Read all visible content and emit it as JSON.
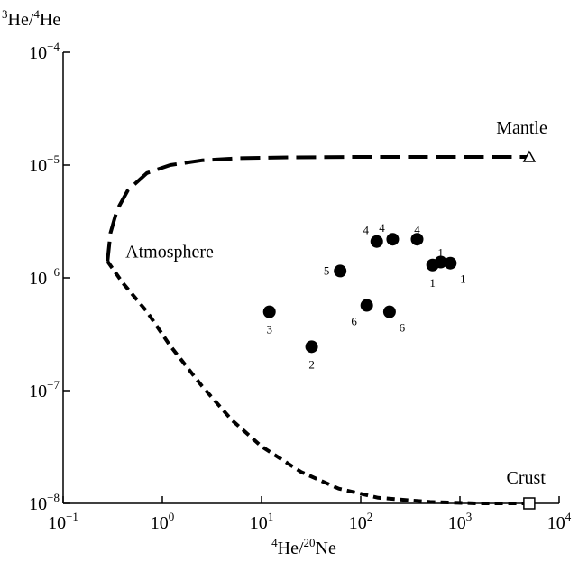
{
  "chart_data": {
    "type": "scatter",
    "xscale": "log",
    "yscale": "log",
    "xlim": [
      0.1,
      10000
    ],
    "ylim": [
      1e-08,
      0.0001
    ],
    "xlabel": {
      "base1": "4",
      "base2": "He/",
      "sup2": "20",
      "tail": "Ne"
    },
    "ylabel": {
      "sup1": "3",
      "base1": "He/",
      "sup2": "4",
      "base2": "He"
    },
    "x_ticks": [
      {
        "value": 0.1,
        "base": "10",
        "exp": "−1"
      },
      {
        "value": 1,
        "base": "10",
        "exp": "0"
      },
      {
        "value": 10,
        "base": "10",
        "exp": "1"
      },
      {
        "value": 100,
        "base": "10",
        "exp": "2"
      },
      {
        "value": 1000,
        "base": "10",
        "exp": "3"
      },
      {
        "value": 10000,
        "base": "10",
        "exp": "4"
      }
    ],
    "y_ticks": [
      {
        "value": 1e-08,
        "base": "10",
        "exp": "−8"
      },
      {
        "value": 1e-07,
        "base": "10",
        "exp": "−7"
      },
      {
        "value": 1e-06,
        "base": "10",
        "exp": "−6"
      },
      {
        "value": 1e-05,
        "base": "10",
        "exp": "−5"
      },
      {
        "value": 0.0001,
        "base": "10",
        "exp": "−4"
      }
    ],
    "grid": false,
    "points": [
      {
        "x": 12,
        "y": 5e-07,
        "label": "3",
        "label_pos": "below"
      },
      {
        "x": 32,
        "y": 2.45e-07,
        "label": "2",
        "label_pos": "below"
      },
      {
        "x": 62,
        "y": 1.15e-06,
        "label": "5",
        "label_pos": "left"
      },
      {
        "x": 115,
        "y": 5.7e-07,
        "label": "6",
        "label_pos": "below-left"
      },
      {
        "x": 195,
        "y": 5e-07,
        "label": "6",
        "label_pos": "below-right"
      },
      {
        "x": 145,
        "y": 2.1e-06,
        "label": "4",
        "label_pos": "above-left"
      },
      {
        "x": 210,
        "y": 2.2e-06,
        "label": "4",
        "label_pos": "above-left"
      },
      {
        "x": 370,
        "y": 2.2e-06,
        "label": "4",
        "label_pos": "above"
      },
      {
        "x": 530,
        "y": 1.3e-06,
        "label": "1",
        "label_pos": "below"
      },
      {
        "x": 640,
        "y": 1.38e-06,
        "label": "1",
        "label_pos": "above"
      },
      {
        "x": 800,
        "y": 1.35e-06,
        "label": "1",
        "label_pos": "below-right"
      }
    ],
    "curves": [
      {
        "style": "long-dash",
        "points": [
          [
            0.28,
            1.4e-06
          ],
          [
            0.3,
            2.5e-06
          ],
          [
            0.35,
            4e-06
          ],
          [
            0.45,
            6e-06
          ],
          [
            0.7,
            8.5e-06
          ],
          [
            1.2,
            1e-05
          ],
          [
            2.5,
            1.1e-05
          ],
          [
            6,
            1.15e-05
          ],
          [
            20,
            1.17e-05
          ],
          [
            100,
            1.18e-05
          ],
          [
            1000,
            1.18e-05
          ],
          [
            5000,
            1.18e-05
          ]
        ]
      },
      {
        "style": "short-dash",
        "points": [
          [
            0.28,
            1.4e-06
          ],
          [
            0.4,
            9e-07
          ],
          [
            0.7,
            5e-07
          ],
          [
            1.2,
            2.5e-07
          ],
          [
            2.5,
            1.1e-07
          ],
          [
            5,
            5.5e-08
          ],
          [
            10,
            3.2e-08
          ],
          [
            25,
            1.9e-08
          ],
          [
            60,
            1.35e-08
          ],
          [
            150,
            1.12e-08
          ],
          [
            500,
            1.03e-08
          ],
          [
            1500,
            1e-08
          ],
          [
            5000,
            1e-08
          ]
        ]
      }
    ],
    "endmembers": [
      {
        "name": "Mantle",
        "x": 5000,
        "y": 1.18e-05,
        "marker": "triangle"
      },
      {
        "name": "Crust",
        "x": 5000,
        "y": 1e-08,
        "marker": "square"
      },
      {
        "name": "Atmosphere",
        "x": 0.28,
        "y": 1.4e-06,
        "marker": "none"
      }
    ]
  }
}
